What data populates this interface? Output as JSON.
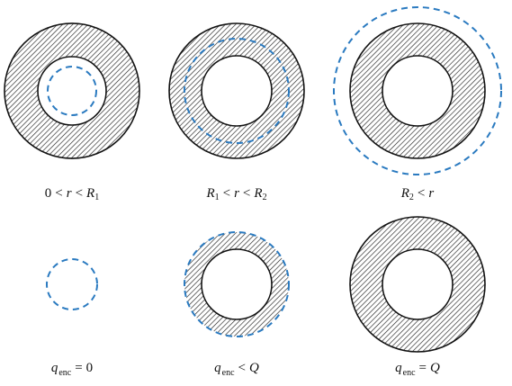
{
  "labels": {
    "row1": [
      {
        "left": "0",
        "op1": "<",
        "var": "r",
        "op2": "<",
        "right_sym": "R",
        "right_sub": "1"
      },
      {
        "left_sym": "R",
        "left_sub": "1",
        "op1": "<",
        "var": "r",
        "op2": "<",
        "right_sym": "R",
        "right_sub": "2"
      },
      {
        "left_sym": "R",
        "left_sub": "2",
        "op1": "<",
        "var": "r"
      }
    ],
    "row2": [
      {
        "q": "q",
        "sub": "enc",
        "op": "=",
        "val": "0"
      },
      {
        "q": "q",
        "sub": "enc",
        "op": "<",
        "val": "Q"
      },
      {
        "q": "q",
        "sub": "enc",
        "op": "=",
        "val": "Q"
      }
    ]
  },
  "colors": {
    "shell_stroke": "#111111",
    "hatch": "#222222",
    "gaussian_surface": "#2a7ac0",
    "background": "#ffffff"
  }
}
